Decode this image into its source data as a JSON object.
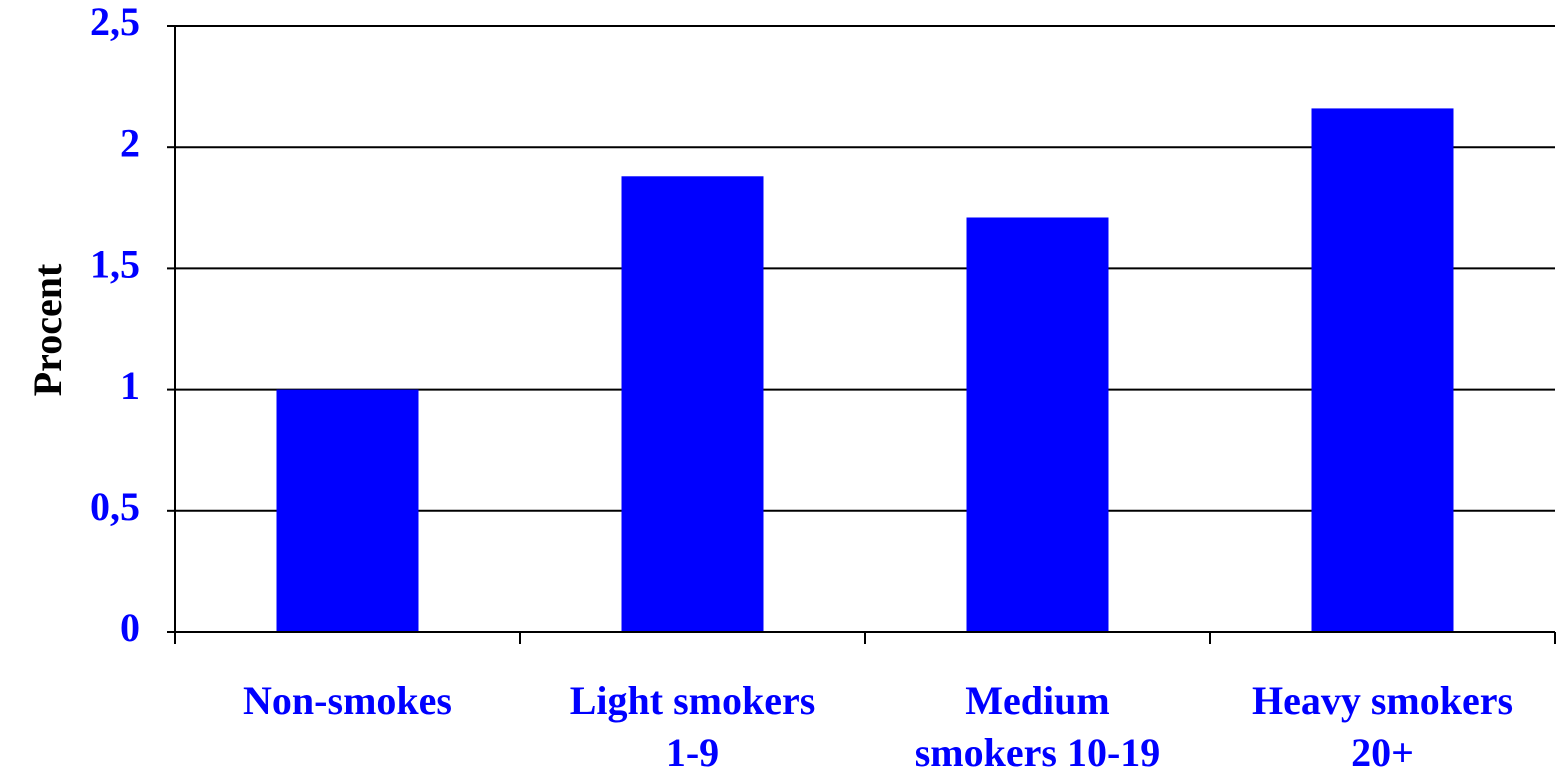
{
  "chart_data": {
    "type": "bar",
    "title": "",
    "xlabel": "",
    "ylabel": "Procent",
    "categories": [
      [
        "Non-smokes"
      ],
      [
        "Light smokers",
        "1-9"
      ],
      [
        "Medium",
        "smokers 10-19"
      ],
      [
        "Heavy smokers",
        "20+"
      ]
    ],
    "values": [
      1.0,
      1.88,
      1.71,
      2.16
    ],
    "ylim": [
      0,
      2.5
    ],
    "yticks": [
      {
        "value": 0,
        "label": "0"
      },
      {
        "value": 0.5,
        "label": "0,5"
      },
      {
        "value": 1,
        "label": "1"
      },
      {
        "value": 1.5,
        "label": "1,5"
      },
      {
        "value": 2,
        "label": "2"
      },
      {
        "value": 2.5,
        "label": "2,5"
      }
    ],
    "grid": true,
    "legend": "none",
    "colors": {
      "bar": "#0000ff",
      "tick_text": "#0000ff",
      "axis_title": "#000000",
      "grid": "#000000"
    }
  }
}
